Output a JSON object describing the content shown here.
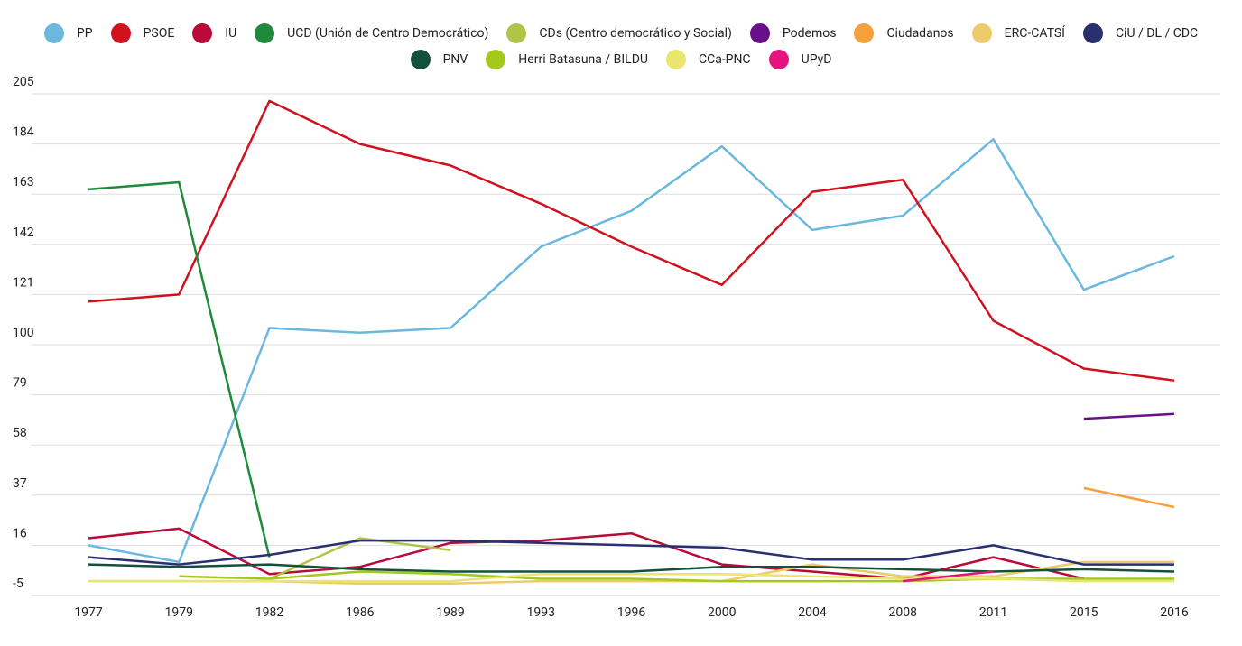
{
  "chart_data": {
    "type": "line",
    "categories": [
      "1977",
      "1979",
      "1982",
      "1986",
      "1989",
      "1993",
      "1996",
      "2000",
      "2004",
      "2008",
      "2011",
      "2015",
      "2016"
    ],
    "ylim": [
      -5,
      205
    ],
    "yticks": [
      -5,
      16,
      37,
      58,
      79,
      100,
      121,
      142,
      163,
      184,
      205
    ],
    "grid": true,
    "series": [
      {
        "name": "PP",
        "color": "#6bb8de",
        "values": [
          16,
          9,
          107,
          105,
          107,
          141,
          156,
          183,
          148,
          154,
          186,
          123,
          137
        ]
      },
      {
        "name": "PSOE",
        "color": "#d0121f",
        "values": [
          118,
          121,
          202,
          184,
          175,
          159,
          141,
          125,
          164,
          169,
          110,
          90,
          85
        ]
      },
      {
        "name": "IU",
        "color": "#b80b3a",
        "values": [
          19,
          23,
          4,
          7,
          17,
          18,
          21,
          8,
          5,
          2,
          11,
          2,
          null
        ]
      },
      {
        "name": "UCD (Unión de Centro Democrático)",
        "color": "#1f8a3b",
        "values": [
          165,
          168,
          11,
          null,
          null,
          null,
          null,
          null,
          null,
          null,
          null,
          null,
          null
        ]
      },
      {
        "name": "CDs (Centro democrático y Social)",
        "color": "#b0c44a",
        "values": [
          null,
          null,
          2,
          19,
          14,
          null,
          null,
          null,
          null,
          null,
          null,
          null,
          null
        ]
      },
      {
        "name": "Podemos",
        "color": "#6a0f8a",
        "values": [
          null,
          null,
          null,
          null,
          null,
          null,
          null,
          null,
          null,
          null,
          null,
          69,
          71
        ]
      },
      {
        "name": "Ciudadanos",
        "color": "#f6a03b",
        "values": [
          null,
          null,
          null,
          null,
          null,
          null,
          null,
          null,
          null,
          null,
          null,
          40,
          32
        ]
      },
      {
        "name": "ERC-CATSÍ",
        "color": "#edcb6a",
        "values": [
          1,
          1,
          1,
          0,
          0,
          1,
          1,
          1,
          8,
          3,
          3,
          9,
          9
        ]
      },
      {
        "name": "CiU / DL / CDC",
        "color": "#2a2f6e",
        "values": [
          11,
          8,
          12,
          18,
          18,
          17,
          16,
          15,
          10,
          10,
          16,
          8,
          8
        ]
      },
      {
        "name": "PNV",
        "color": "#13513a",
        "values": [
          8,
          7,
          8,
          6,
          5,
          5,
          5,
          7,
          7,
          6,
          5,
          6,
          5
        ]
      },
      {
        "name": "Herri Batasuna / BILDU",
        "color": "#a4c91c",
        "values": [
          null,
          3,
          2,
          5,
          4,
          2,
          2,
          1,
          1,
          1,
          2,
          2,
          2
        ]
      },
      {
        "name": "CCa-PNC",
        "color": "#e9e56e",
        "values": [
          1,
          1,
          1,
          1,
          1,
          4,
          4,
          4,
          3,
          2,
          2,
          1,
          1
        ]
      },
      {
        "name": "UPyD",
        "color": "#e5137e",
        "values": [
          null,
          null,
          null,
          null,
          null,
          null,
          null,
          null,
          null,
          1,
          5,
          null,
          null
        ]
      }
    ]
  }
}
